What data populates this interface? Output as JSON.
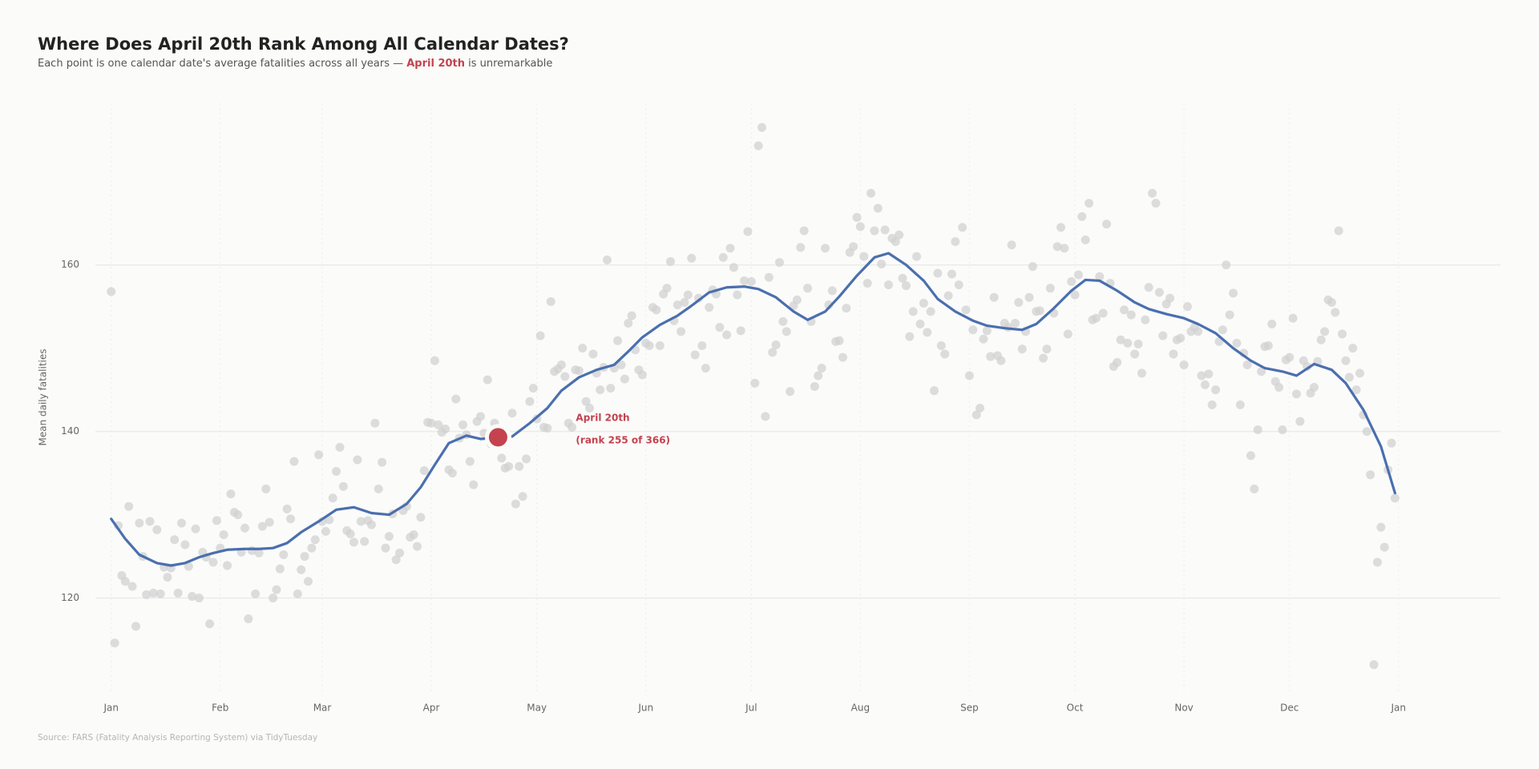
{
  "chart_data": {
    "type": "scatter",
    "title": "Where Does April 20th Rank Among All Calendar Dates?",
    "subtitle": [
      "Each point is one calendar date's average fatalities across all years — ",
      "April 20th",
      " is unremarkable"
    ],
    "y_label": "Mean daily fatalities",
    "source": "Source: FARS (Fatality Analysis Reporting System) via TidyTuesday",
    "annotations": [
      "April 20th",
      "(rank 255 of 366)"
    ],
    "xlim": [
      -4.5,
      395
    ],
    "ylim": [
      108.8,
      179.4
    ],
    "xticks": [
      {
        "value": 0,
        "label": "Jan"
      },
      {
        "value": 31,
        "label": "Feb"
      },
      {
        "value": 60,
        "label": "Mar"
      },
      {
        "value": 91,
        "label": "Apr"
      },
      {
        "value": 121,
        "label": "May"
      },
      {
        "value": 152,
        "label": "Jun"
      },
      {
        "value": 182,
        "label": "Jul"
      },
      {
        "value": 213,
        "label": "Aug"
      },
      {
        "value": 244,
        "label": "Sep"
      },
      {
        "value": 274,
        "label": "Oct"
      },
      {
        "value": 305,
        "label": "Nov"
      },
      {
        "value": 335,
        "label": "Dec"
      },
      {
        "value": 366,
        "label": "Jan"
      }
    ],
    "yticks": [
      120,
      140,
      160
    ],
    "grid": true,
    "series": [
      {
        "color": "#d2d2d2",
        "x": [
          0,
          1,
          2,
          3,
          4,
          5,
          6,
          7,
          8,
          9,
          10,
          11,
          12,
          13,
          14,
          15,
          16,
          17,
          18,
          19,
          20,
          21,
          22,
          23,
          24,
          25,
          26,
          27,
          28,
          29,
          30,
          31,
          32,
          33,
          34,
          35,
          36,
          37,
          38,
          39,
          40,
          41,
          42,
          43,
          44,
          45,
          46,
          47,
          48,
          49,
          50,
          51,
          52,
          53,
          54,
          55,
          56,
          57,
          58,
          59,
          60,
          61,
          62,
          63,
          64,
          65,
          66,
          67,
          68,
          69,
          70,
          71,
          72,
          73,
          74,
          75,
          76,
          77,
          78,
          79,
          80,
          81,
          82,
          83,
          84,
          85,
          86,
          87,
          88,
          89,
          90,
          91,
          92,
          93,
          94,
          95,
          96,
          97,
          98,
          99,
          100,
          101,
          102,
          103,
          104,
          105,
          106,
          107,
          108,
          109,
          111,
          112,
          113,
          114,
          115,
          116,
          117,
          118,
          119,
          120,
          121,
          122,
          123,
          124,
          125,
          126,
          127,
          128,
          129,
          130,
          131,
          132,
          133,
          134,
          135,
          136,
          137,
          138,
          139,
          140,
          141,
          142,
          143,
          144,
          145,
          146,
          147,
          148,
          149,
          150,
          151,
          152,
          153,
          154,
          155,
          156,
          157,
          158,
          159,
          160,
          161,
          162,
          163,
          164,
          165,
          166,
          167,
          168,
          169,
          170,
          171,
          172,
          173,
          174,
          175,
          176,
          177,
          178,
          179,
          180,
          181,
          182,
          183,
          184,
          185,
          186,
          187,
          188,
          189,
          190,
          191,
          192,
          193,
          194,
          195,
          196,
          197,
          198,
          199,
          200,
          201,
          202,
          203,
          204,
          205,
          206,
          207,
          208,
          209,
          210,
          211,
          212,
          213,
          214,
          215,
          216,
          217,
          218,
          219,
          220,
          221,
          222,
          223,
          224,
          225,
          226,
          227,
          228,
          229,
          230,
          231,
          232,
          233,
          234,
          235,
          236,
          237,
          238,
          239,
          240,
          241,
          242,
          243,
          244,
          245,
          246,
          247,
          248,
          249,
          250,
          251,
          252,
          253,
          254,
          255,
          256,
          257,
          258,
          259,
          260,
          261,
          262,
          263,
          264,
          265,
          266,
          267,
          268,
          269,
          270,
          271,
          272,
          273,
          274,
          275,
          276,
          277,
          278,
          279,
          280,
          281,
          282,
          283,
          284,
          285,
          286,
          287,
          288,
          289,
          290,
          291,
          292,
          293,
          294,
          295,
          296,
          297,
          298,
          299,
          300,
          301,
          302,
          303,
          304,
          305,
          306,
          307,
          308,
          309,
          310,
          311,
          312,
          313,
          314,
          315,
          316,
          317,
          318,
          319,
          320,
          321,
          322,
          323,
          324,
          325,
          326,
          327,
          328,
          329,
          330,
          331,
          332,
          333,
          334,
          335,
          336,
          337,
          338,
          339,
          340,
          341,
          342,
          343,
          344,
          345,
          346,
          347,
          348,
          349,
          350,
          351,
          352,
          353,
          354,
          355,
          356,
          357,
          358,
          359,
          360,
          361,
          362,
          363,
          364,
          365
        ],
        "values": [
          156.8,
          114.6,
          128.7,
          122.7,
          122.0,
          131.0,
          121.4,
          116.6,
          129.0,
          125.0,
          120.4,
          129.2,
          120.6,
          128.2,
          120.5,
          123.7,
          122.5,
          123.6,
          127.0,
          120.6,
          129.0,
          126.4,
          123.8,
          120.2,
          128.3,
          120.0,
          125.5,
          124.9,
          116.9,
          124.3,
          129.3,
          126.0,
          127.6,
          123.9,
          132.5,
          130.3,
          130.0,
          125.5,
          128.4,
          117.5,
          125.7,
          120.5,
          125.4,
          128.6,
          133.1,
          129.1,
          120.0,
          121.0,
          123.5,
          125.2,
          130.7,
          129.5,
          136.4,
          120.5,
          123.4,
          125.0,
          122.0,
          126.0,
          127.0,
          137.2,
          129.2,
          128.0,
          129.4,
          132.0,
          135.2,
          138.1,
          133.4,
          128.1,
          127.7,
          126.7,
          136.6,
          129.2,
          126.8,
          129.3,
          128.8,
          141.0,
          133.1,
          136.3,
          126.0,
          127.4,
          130.1,
          124.6,
          125.4,
          130.5,
          131.0,
          127.3,
          127.6,
          126.2,
          129.7,
          135.3,
          141.1,
          141.0,
          148.5,
          140.8,
          139.9,
          140.3,
          135.4,
          135.0,
          143.9,
          139.2,
          140.8,
          139.6,
          136.4,
          133.6,
          141.2,
          141.8,
          139.8,
          146.2,
          138.5,
          141.0,
          136.8,
          135.6,
          135.8,
          142.2,
          131.3,
          135.8,
          132.2,
          136.7,
          143.6,
          145.2,
          141.5,
          151.5,
          140.5,
          140.4,
          155.6,
          147.2,
          147.5,
          148.0,
          146.6,
          141.0,
          140.5,
          147.4,
          147.3,
          150.0,
          143.6,
          142.8,
          149.3,
          147.0,
          145.0,
          147.7,
          160.6,
          145.2,
          147.6,
          150.9,
          148.0,
          146.3,
          153.0,
          153.9,
          149.8,
          147.4,
          146.8,
          150.6,
          150.3,
          154.9,
          154.6,
          150.3,
          156.5,
          157.2,
          160.4,
          153.3,
          155.2,
          152.0,
          155.5,
          156.4,
          160.8,
          149.2,
          156.0,
          150.3,
          147.6,
          154.9,
          157.0,
          156.5,
          152.5,
          160.9,
          151.6,
          162.0,
          159.7,
          156.4,
          152.1,
          158.1,
          164.0,
          158.0,
          145.8,
          174.3,
          176.5,
          141.8,
          158.5,
          149.5,
          150.4,
          160.3,
          153.2,
          152.0,
          144.8,
          155.1,
          155.8,
          162.1,
          164.1,
          157.2,
          153.2,
          145.4,
          146.7,
          147.6,
          162.0,
          155.2,
          156.9,
          150.8,
          150.9,
          148.9,
          154.8,
          161.5,
          162.2,
          165.7,
          164.6,
          161.0,
          157.8,
          168.6,
          164.1,
          166.8,
          160.1,
          164.2,
          157.6,
          163.2,
          162.8,
          163.6,
          158.4,
          157.5,
          151.4,
          154.4,
          161.0,
          152.9,
          155.4,
          151.9,
          154.4,
          144.9,
          159.0,
          150.3,
          149.3,
          156.3,
          158.9,
          162.8,
          157.6,
          164.5,
          154.6,
          146.7,
          152.2,
          142.0,
          142.8,
          151.1,
          152.1,
          149.0,
          156.1,
          149.1,
          148.5,
          153.0,
          152.5,
          162.4,
          153.0,
          155.5,
          149.9,
          152.0,
          156.1,
          159.8,
          154.4,
          154.5,
          148.8,
          149.9,
          157.2,
          154.2,
          162.2,
          164.5,
          162.0,
          151.7,
          158.0,
          156.4,
          158.8,
          165.8,
          163.0,
          167.4,
          153.4,
          153.6,
          158.6,
          154.2,
          164.9,
          157.8,
          147.8,
          148.3,
          151.0,
          154.6,
          150.6,
          154.0,
          149.3,
          150.5,
          147.0,
          153.4,
          157.3,
          168.6,
          167.4,
          156.7,
          151.5,
          155.3,
          156.0,
          149.3,
          151.0,
          151.2,
          148.0,
          155.0,
          152.0,
          152.5,
          152.0,
          146.7,
          145.6,
          146.9,
          143.2,
          145.0,
          150.8,
          152.2,
          160.0,
          154.0,
          156.6,
          150.6,
          143.2,
          149.4,
          148.0,
          137.1,
          133.1,
          140.2,
          147.2,
          150.2,
          150.3,
          152.9,
          146.0,
          145.3,
          140.2,
          148.6,
          148.9,
          153.6,
          144.5,
          141.2,
          148.5,
          147.8,
          144.6,
          145.3,
          148.4,
          151.0,
          152.0,
          155.8,
          155.5,
          154.3,
          164.1,
          151.7,
          148.5,
          146.5,
          150.0,
          145.0,
          147.0,
          142.0,
          140.0,
          134.8,
          112.0,
          124.3,
          128.5,
          126.1,
          135.4,
          138.6,
          132.0
        ]
      },
      {
        "type": "line",
        "color": "#4a6fae",
        "x": [
          0,
          4,
          8,
          13,
          17,
          21,
          25,
          29,
          33,
          38,
          42,
          46,
          50,
          54,
          59,
          64,
          69,
          74,
          79,
          84,
          88,
          92,
          96,
          101,
          105,
          114,
          119,
          124,
          128,
          133,
          138,
          143,
          147,
          151,
          156,
          161,
          165,
          170,
          175,
          180,
          184,
          189,
          194,
          198,
          203,
          207,
          212,
          217,
          221,
          226,
          231,
          235,
          240,
          245,
          249,
          254,
          259,
          263,
          268,
          273,
          277,
          281,
          286,
          291,
          295,
          300,
          305,
          309,
          314,
          319,
          324,
          328,
          333,
          337,
          342,
          347,
          351,
          356,
          361,
          365
        ],
        "values": [
          129.5,
          127.1,
          125.2,
          124.2,
          123.9,
          124.2,
          124.9,
          125.4,
          125.8,
          125.9,
          125.9,
          126.0,
          126.6,
          127.9,
          129.2,
          130.6,
          130.9,
          130.2,
          130.0,
          131.3,
          133.3,
          136.0,
          138.6,
          139.5,
          139.1,
          139.4,
          141.0,
          142.8,
          144.9,
          146.5,
          147.4,
          148.0,
          149.6,
          151.3,
          152.8,
          153.9,
          155.1,
          156.7,
          157.3,
          157.4,
          157.1,
          156.1,
          154.4,
          153.4,
          154.4,
          156.2,
          158.7,
          160.9,
          161.4,
          160.0,
          158.1,
          155.9,
          154.4,
          153.3,
          152.7,
          152.4,
          152.2,
          152.9,
          154.8,
          156.9,
          158.2,
          158.1,
          156.9,
          155.5,
          154.7,
          154.1,
          153.6,
          152.9,
          151.8,
          150.0,
          148.5,
          147.6,
          147.2,
          146.7,
          148.1,
          147.4,
          145.8,
          142.6,
          138.2,
          132.6
        ]
      },
      {
        "color": "#c4434e",
        "x": [
          110
        ],
        "values": [
          139.3
        ]
      }
    ]
  }
}
